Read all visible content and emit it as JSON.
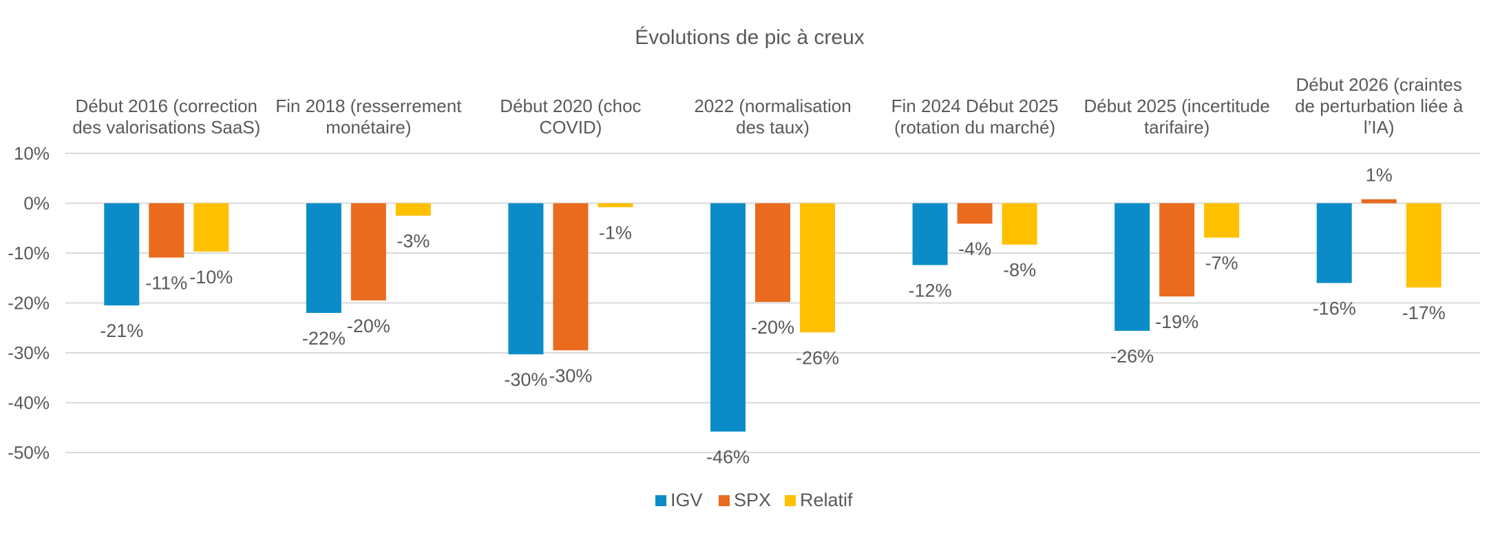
{
  "chart_data": {
    "type": "bar",
    "title": "Évolutions de pic à creux",
    "categories": [
      [
        "Début 2016 (correction",
        "des valorisations SaaS)"
      ],
      [
        "Fin 2018 (resserrement",
        "monétaire)"
      ],
      [
        "Début 2020 (choc",
        "COVID)"
      ],
      [
        "2022 (normalisation",
        "des taux)"
      ],
      [
        "Fin 2024 Début 2025",
        "(rotation du marché)"
      ],
      [
        "Début 2025 (incertitude",
        "tarifaire)"
      ],
      [
        "Début 2026 (craintes",
        "de perturbation liée à",
        "l’IA)"
      ]
    ],
    "series": [
      {
        "name": "IGV",
        "color": "#0B8CC9",
        "values": [
          -0.205,
          -0.22,
          -0.303,
          -0.458,
          -0.124,
          -0.256,
          -0.16
        ],
        "labels": [
          "-21%",
          "-22%",
          "-30%",
          "-46%",
          "-12%",
          "-26%",
          "-16%"
        ]
      },
      {
        "name": "SPX",
        "color": "#EA6B1E",
        "values": [
          -0.109,
          -0.195,
          -0.295,
          -0.198,
          -0.041,
          -0.187,
          0.008
        ],
        "labels": [
          "-11%",
          "-20%",
          "-30%",
          "-20%",
          "-4%",
          "-19%",
          "1%"
        ]
      },
      {
        "name": "Relatif",
        "color": "#FFC000",
        "values": [
          -0.097,
          -0.025,
          -0.008,
          -0.259,
          -0.083,
          -0.069,
          -0.169
        ],
        "labels": [
          "-10%",
          "-3%",
          "-1%",
          "-26%",
          "-8%",
          "-7%",
          "-17%"
        ]
      }
    ],
    "ylim": [
      -0.5,
      0.1
    ],
    "yticks": [
      0.1,
      0,
      -0.1,
      -0.2,
      -0.3,
      -0.4,
      -0.5
    ],
    "ytick_labels": [
      "10%",
      "0%",
      "-10%",
      "-20%",
      "-30%",
      "-40%",
      "-50%"
    ],
    "grid": true,
    "legend_position": "bottom"
  }
}
